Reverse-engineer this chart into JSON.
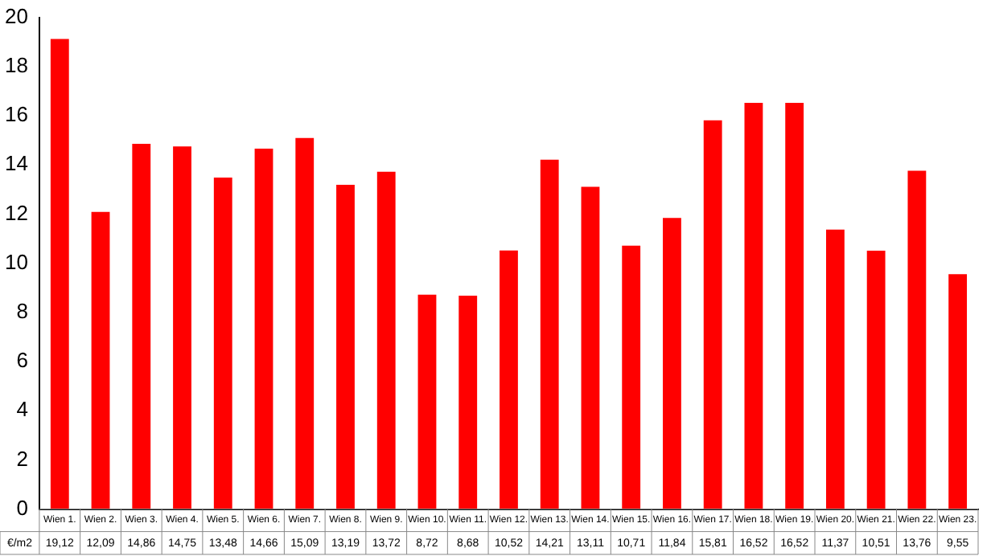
{
  "chart_data": {
    "type": "bar",
    "categories": [
      "Wien 1.",
      "Wien 2.",
      "Wien 3.",
      "Wien 4.",
      "Wien 5.",
      "Wien 6.",
      "Wien 7.",
      "Wien 8.",
      "Wien 9.",
      "Wien 10.",
      "Wien 11.",
      "Wien 12.",
      "Wien 13.",
      "Wien 14.",
      "Wien 15.",
      "Wien 16.",
      "Wien 17.",
      "Wien 18.",
      "Wien 19.",
      "Wien 20.",
      "Wien 21.",
      "Wien 22.",
      "Wien 23."
    ],
    "series": [
      {
        "name": "€/m2",
        "color": "#ff0000",
        "values": [
          19.12,
          12.09,
          14.86,
          14.75,
          13.48,
          14.66,
          15.09,
          13.19,
          13.72,
          8.72,
          8.68,
          10.52,
          14.21,
          13.11,
          10.71,
          11.84,
          15.81,
          16.52,
          16.52,
          11.37,
          10.51,
          13.76,
          9.55
        ],
        "value_labels": [
          "19,12",
          "12,09",
          "14,86",
          "14,75",
          "13,48",
          "14,66",
          "15,09",
          "13,19",
          "13,72",
          "8,72",
          "8,68",
          "10,52",
          "14,21",
          "13,11",
          "10,71",
          "11,84",
          "15,81",
          "16,52",
          "16,52",
          "11,37",
          "10,51",
          "13,76",
          "9,55"
        ]
      }
    ],
    "ylim": [
      0,
      20
    ],
    "yticks": [
      0,
      2,
      4,
      6,
      8,
      10,
      12,
      14,
      16,
      18,
      20
    ],
    "grid": false,
    "legend": false
  }
}
